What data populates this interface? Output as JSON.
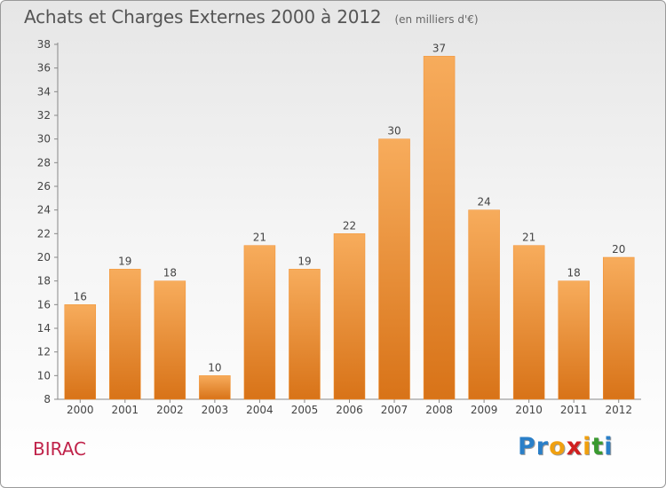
{
  "title": "Achats et Charges Externes 2000 à 2012",
  "subtitle": "(en milliers d'€)",
  "town": "BIRAC",
  "logo": {
    "letters": [
      "P",
      "r",
      "o",
      "x",
      "i",
      "t",
      "i"
    ],
    "colors": [
      "#2a7fc8",
      "#2a7fc8",
      "#f0a010",
      "#d02020",
      "#f0a010",
      "#3a9a30",
      "#2a7fc8"
    ]
  },
  "colors": {
    "bar": "#f28f2e",
    "bar_light": "#f7ac5c",
    "bar_dark": "#d87318"
  },
  "chart_data": {
    "type": "bar",
    "categories": [
      "2000",
      "2001",
      "2002",
      "2003",
      "2004",
      "2005",
      "2006",
      "2007",
      "2008",
      "2009",
      "2010",
      "2011",
      "2012"
    ],
    "values": [
      16,
      19,
      18,
      10,
      21,
      19,
      22,
      30,
      37,
      24,
      21,
      18,
      20
    ],
    "title": "Achats et Charges Externes 2000 à 2012",
    "subtitle": "(en milliers d'€)",
    "ylim": [
      8,
      38
    ],
    "yticks": [
      8,
      10,
      12,
      14,
      16,
      18,
      20,
      22,
      24,
      26,
      28,
      30,
      32,
      34,
      36,
      38
    ],
    "grid": false
  }
}
